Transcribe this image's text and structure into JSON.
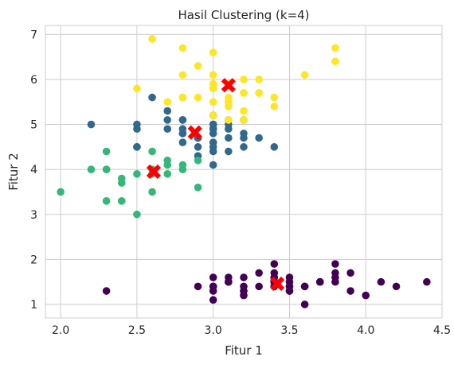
{
  "chart_data": {
    "type": "scatter",
    "title": "Hasil Clustering (k=4)",
    "xlabel": "Fitur 1",
    "ylabel": "Fitur 2",
    "xlim": [
      1.9,
      4.5
    ],
    "ylim": [
      0.7,
      7.2
    ],
    "xticks": [
      "2.0",
      "2.5",
      "3.0",
      "3.5",
      "4.0",
      "4.5"
    ],
    "yticks": [
      "1",
      "2",
      "3",
      "4",
      "5",
      "6",
      "7"
    ],
    "grid": true,
    "legend": "none",
    "series": [
      {
        "color": "#440154",
        "x": [
          3.5,
          3.0,
          3.2,
          3.1,
          3.6,
          3.9,
          3.4,
          3.4,
          2.9,
          3.1,
          3.7,
          3.4,
          3.0,
          3.0,
          4.0,
          4.4,
          3.9,
          3.5,
          3.8,
          3.8,
          3.4,
          3.7,
          3.6,
          3.3,
          3.4,
          3.0,
          3.4,
          3.5,
          3.4,
          3.2,
          3.1,
          3.4,
          4.1,
          4.2,
          3.1,
          3.2,
          3.5,
          3.6,
          3.0,
          3.4,
          3.5,
          2.3,
          3.2,
          3.5,
          3.8,
          3.0,
          3.8,
          3.2,
          3.7,
          3.3
        ],
        "y": [
          1.4,
          1.4,
          1.3,
          1.5,
          1.4,
          1.7,
          1.4,
          1.5,
          1.4,
          1.5,
          1.5,
          1.6,
          1.4,
          1.1,
          1.2,
          1.5,
          1.3,
          1.4,
          1.7,
          1.5,
          1.7,
          1.5,
          1.0,
          1.7,
          1.9,
          1.6,
          1.6,
          1.5,
          1.4,
          1.6,
          1.6,
          1.5,
          1.5,
          1.4,
          1.5,
          1.2,
          1.3,
          1.4,
          1.3,
          1.5,
          1.3,
          1.3,
          1.3,
          1.6,
          1.9,
          1.4,
          1.6,
          1.4,
          1.5,
          1.4
        ]
      },
      {
        "color": "#31688e",
        "x": [
          3.2,
          3.2,
          3.1,
          2.8,
          3.3,
          2.7,
          3.0,
          2.9,
          2.9,
          3.1,
          3.0,
          2.8,
          3.0,
          2.9,
          2.5,
          2.8,
          3.0,
          3.0,
          3.4,
          3.1,
          3.0,
          2.2,
          2.8,
          3.0,
          2.5,
          2.8,
          3.2,
          3.0,
          2.8,
          3.2,
          2.8,
          3.0,
          2.9,
          3.1,
          3.1,
          3.0,
          2.7,
          2.5,
          3.0,
          2.6,
          2.7,
          2.5
        ],
        "y": [
          4.7,
          4.5,
          4.9,
          4.6,
          4.7,
          5.1,
          4.6,
          4.7,
          4.5,
          4.4,
          5.0,
          4.8,
          4.4,
          4.3,
          4.5,
          5.1,
          4.8,
          4.5,
          4.5,
          4.7,
          4.1,
          5.0,
          4.9,
          4.9,
          4.9,
          4.8,
          4.8,
          4.9,
          5.1,
          5.1,
          4.8,
          5.0,
          4.7,
          5.0,
          5.1,
          5.2,
          5.3,
          5.0,
          5.2,
          5.6,
          4.9,
          4.5
        ]
      },
      {
        "color": "#35b779",
        "x": [
          2.3,
          2.4,
          2.7,
          2.0,
          2.2,
          2.7,
          2.5,
          2.9,
          2.3,
          2.8,
          2.6,
          2.4,
          2.4,
          2.7,
          2.6,
          2.3,
          2.5,
          2.3,
          2.6,
          2.9,
          2.8,
          2.6
        ],
        "y": [
          4.0,
          3.3,
          3.9,
          3.5,
          4.0,
          4.1,
          3.0,
          3.6,
          4.4,
          4.0,
          3.5,
          3.8,
          3.7,
          4.2,
          4.4,
          3.3,
          3.9,
          4.0,
          4.0,
          4.2,
          4.1,
          3.9
        ]
      },
      {
        "color": "#fde725",
        "x": [
          3.3,
          2.9,
          3.0,
          2.5,
          3.6,
          3.2,
          3.0,
          3.2,
          3.3,
          3.2,
          2.8,
          3.8,
          2.6,
          3.2,
          2.8,
          2.8,
          3.0,
          3.0,
          3.8,
          2.8,
          3.1,
          3.0,
          3.1,
          3.1,
          3.4,
          3.3,
          3.0,
          3.4,
          3.1,
          2.9,
          2.7,
          3.0,
          3.0,
          3.1,
          3.2,
          2.8,
          3.1,
          3.0
        ],
        "y": [
          6.0,
          5.6,
          5.8,
          5.8,
          6.1,
          5.1,
          5.5,
          5.3,
          5.7,
          6.0,
          5.6,
          6.7,
          6.9,
          5.7,
          6.7,
          5.6,
          6.1,
          6.6,
          6.4,
          6.1,
          5.6,
          5.8,
          5.4,
          5.5,
          5.6,
          5.7,
          5.9,
          5.4,
          5.4,
          6.3,
          5.5,
          5.9,
          5.8,
          5.9,
          5.7,
          6.1,
          5.1,
          5.2
        ]
      }
    ],
    "centroids": {
      "color": "#ff0000",
      "marker": "x",
      "x": [
        3.42,
        2.88,
        2.61,
        3.1
      ],
      "y": [
        1.46,
        4.82,
        3.95,
        5.87
      ]
    }
  }
}
